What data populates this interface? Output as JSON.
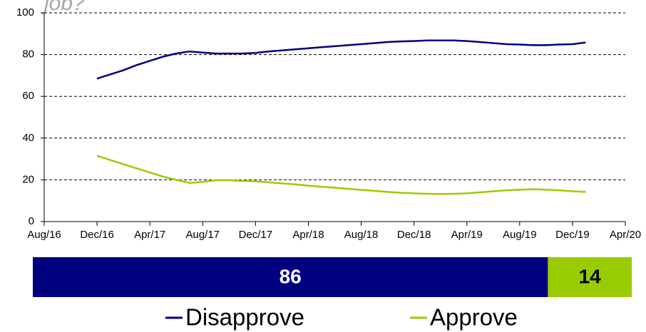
{
  "chart_data": {
    "type": "line",
    "title": "job?",
    "x": [
      "Dec/16",
      "Jan/17",
      "Feb/17",
      "Mar/17",
      "Apr/17",
      "May/17",
      "Jun/17",
      "Jul/17",
      "Aug/17",
      "Sep/17",
      "Oct/17",
      "Nov/17",
      "Dec/17",
      "Jan/18",
      "Feb/18",
      "Mar/18",
      "Apr/18",
      "May/18",
      "Jun/18",
      "Jul/18",
      "Aug/18",
      "Sep/18",
      "Oct/18",
      "Nov/18",
      "Dec/18",
      "Jan/19",
      "Feb/19",
      "Mar/19",
      "Apr/19",
      "May/19",
      "Jun/19",
      "Jul/19",
      "Aug/19",
      "Sep/19",
      "Oct/19",
      "Nov/19",
      "Dec/19",
      "Jan/20"
    ],
    "xticks": [
      "Aug/16",
      "Dec/16",
      "Apr/17",
      "Aug/17",
      "Dec/17",
      "Apr/18",
      "Aug/18",
      "Dec/18",
      "Apr/19",
      "Aug/19",
      "Dec/19",
      "Apr/20"
    ],
    "ylim": [
      0,
      100
    ],
    "yticks": [
      0,
      20,
      40,
      60,
      80,
      100
    ],
    "grid": true,
    "series": [
      {
        "name": "Disapprove",
        "color": "#000080",
        "values": [
          68.5,
          70.5,
          72.5,
          75,
          77,
          79,
          80.5,
          81.5,
          81,
          80.5,
          80.5,
          80.5,
          80.8,
          81.5,
          82,
          82.5,
          83,
          83.5,
          84,
          84.5,
          85,
          85.5,
          86,
          86.3,
          86.5,
          86.8,
          86.8,
          86.8,
          86.5,
          86,
          85.5,
          85,
          84.8,
          84.5,
          84.5,
          84.8,
          85,
          85.8
        ]
      },
      {
        "name": "Approve",
        "color": "#99cc00",
        "values": [
          31.5,
          29.5,
          27.5,
          25.5,
          23.5,
          21.5,
          20,
          18.5,
          19,
          19.8,
          19.8,
          19.5,
          19.3,
          18.8,
          18.3,
          17.8,
          17.2,
          16.7,
          16.2,
          15.7,
          15.2,
          14.7,
          14.2,
          13.8,
          13.5,
          13.3,
          13.2,
          13.3,
          13.5,
          14,
          14.5,
          15,
          15.3,
          15.5,
          15.3,
          15,
          14.5,
          14.2
        ]
      }
    ],
    "summary_values": [
      86,
      14
    ]
  }
}
